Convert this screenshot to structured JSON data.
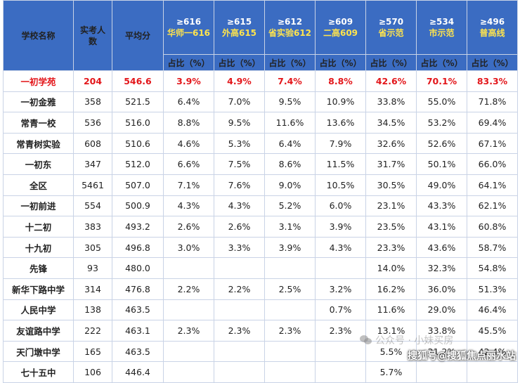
{
  "headers": {
    "school": "学校名称",
    "count": "实考人数",
    "avg": "平均分",
    "thresholds": [
      {
        "top": "≥616",
        "sub": "华师一616"
      },
      {
        "top": "≥615",
        "sub": "外高615"
      },
      {
        "top": "≥612",
        "sub": "省实验612"
      },
      {
        "top": "≥609",
        "sub": "二高609"
      },
      {
        "top": "≥570",
        "sub": "省示范"
      },
      {
        "top": "≥534",
        "sub": "市示范"
      },
      {
        "top": "≥496",
        "sub": "普高线"
      }
    ],
    "ratio_label": "占比（%）"
  },
  "rows": [
    {
      "name": "一初学苑",
      "count": "204",
      "avg": "546.6",
      "v": [
        "3.9%",
        "4.9%",
        "7.4%",
        "8.8%",
        "42.6%",
        "70.1%",
        "83.3%"
      ],
      "highlight": true
    },
    {
      "name": "一初金雅",
      "count": "358",
      "avg": "521.5",
      "v": [
        "6.4%",
        "7.0%",
        "9.5%",
        "10.9%",
        "33.8%",
        "55.0%",
        "71.8%"
      ]
    },
    {
      "name": "常青一校",
      "count": "536",
      "avg": "516.0",
      "v": [
        "8.8%",
        "9.5%",
        "11.6%",
        "13.6%",
        "34.5%",
        "53.2%",
        "69.4%"
      ]
    },
    {
      "name": "常青树实验",
      "count": "608",
      "avg": "510.6",
      "v": [
        "4.6%",
        "5.3%",
        "6.4%",
        "7.9%",
        "32.6%",
        "52.6%",
        "67.1%"
      ]
    },
    {
      "name": "一初东",
      "count": "347",
      "avg": "512.0",
      "v": [
        "6.6%",
        "7.5%",
        "8.6%",
        "11.5%",
        "31.7%",
        "50.1%",
        "66.0%"
      ]
    },
    {
      "name": "全区",
      "count": "5461",
      "avg": "507.0",
      "v": [
        "7.1%",
        "7.6%",
        "9.0%",
        "10.5%",
        "30.5%",
        "49.0%",
        "64.1%"
      ]
    },
    {
      "name": "一初前进",
      "count": "554",
      "avg": "500.9",
      "v": [
        "4.3%",
        "4.3%",
        "5.2%",
        "6.0%",
        "23.1%",
        "43.3%",
        "62.1%"
      ]
    },
    {
      "name": "十二初",
      "count": "383",
      "avg": "493.2",
      "v": [
        "2.6%",
        "2.6%",
        "3.1%",
        "3.9%",
        "23.5%",
        "43.1%",
        "60.8%"
      ]
    },
    {
      "name": "十九初",
      "count": "305",
      "avg": "496.8",
      "v": [
        "3.0%",
        "3.3%",
        "3.9%",
        "4.3%",
        "23.3%",
        "43.6%",
        "58.7%"
      ]
    },
    {
      "name": "先锋",
      "count": "93",
      "avg": "480.0",
      "v": [
        "",
        "",
        "",
        "",
        "14.0%",
        "32.3%",
        "54.8%"
      ]
    },
    {
      "name": "新华下路中学",
      "count": "314",
      "avg": "476.8",
      "v": [
        "2.2%",
        "2.2%",
        "2.5%",
        "3.2%",
        "16.2%",
        "36.0%",
        "51.3%"
      ]
    },
    {
      "name": "人民中学",
      "count": "138",
      "avg": "463.5",
      "v": [
        "",
        "",
        "",
        "0.7%",
        "11.6%",
        "29.0%",
        "46.4%"
      ]
    },
    {
      "name": "友谊路中学",
      "count": "222",
      "avg": "463.1",
      "v": [
        "2.3%",
        "2.3%",
        "2.3%",
        "2.3%",
        "13.1%",
        "33.8%",
        "45.5%"
      ]
    },
    {
      "name": "天门墩中学",
      "count": "165",
      "avg": "463.5",
      "v": [
        "",
        "",
        "",
        "",
        "5.5%",
        "21.2%",
        "42.4%"
      ]
    },
    {
      "name": "七十五中",
      "count": "106",
      "avg": "446.4",
      "v": [
        "",
        "",
        "",
        "",
        "5.7%",
        "",
        ""
      ]
    }
  ],
  "watermark": {
    "faint": "公众号 · 小妹买房",
    "main": "搜狐号@搜狐焦点丽水站"
  }
}
